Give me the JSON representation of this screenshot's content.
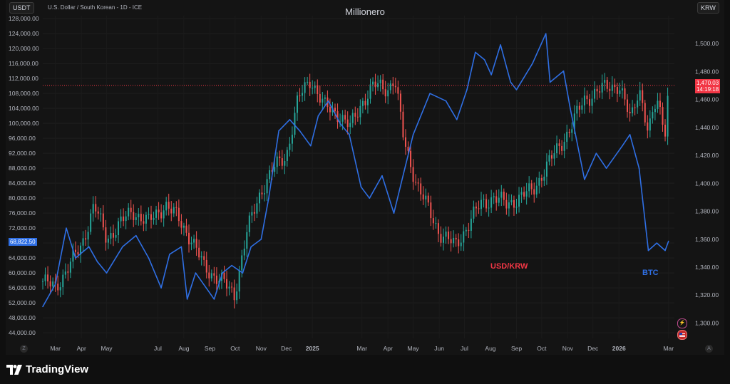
{
  "header": {
    "left_scale_label": "USDT",
    "symbol_info": "U.S. Dollar / South Korean - 1D - ICE",
    "title": "Millionero",
    "right_scale_label": "KRW"
  },
  "annotations": {
    "usdkrw": "USD/KRW",
    "btc": "BTC"
  },
  "price_tags": {
    "btc_price": "68,822.50",
    "krw_price": "1,470.03",
    "countdown": "14:19:18"
  },
  "footer": {
    "brand": "TradingView"
  },
  "icons": [
    "z-scale-icon",
    "lightning-icon",
    "us-flag-icon",
    "auto-scale-icon",
    "tradingview-logo-icon"
  ],
  "colors": {
    "btc_line": "#2f6fe4",
    "krw_up": "#26a69a",
    "krw_down": "#ef5350",
    "price_line": "#f23645",
    "background": "#141414",
    "annotation_usdkrw": "#f23645",
    "annotation_btc": "#2f6fe4"
  },
  "chart_data": {
    "type": "line",
    "title": "Millionero",
    "x_tick_labels": [
      "Mar",
      "Apr",
      "May",
      "Jul",
      "Aug",
      "Sep",
      "Oct",
      "Nov",
      "Dec",
      "2025",
      "Mar",
      "Apr",
      "May",
      "Jun",
      "Jul",
      "Aug",
      "Sep",
      "Oct",
      "Nov",
      "Dec",
      "2026",
      "Mar"
    ],
    "y_left_ticks": [
      "128,000.00",
      "124,000.00",
      "120,000.00",
      "116,000.00",
      "112,000.00",
      "108,000.00",
      "104,000.00",
      "100,000.00",
      "96,000.00",
      "92,000.00",
      "88,000.00",
      "84,000.00",
      "80,000.00",
      "76,000.00",
      "72,000.00",
      "68,000.00",
      "64,000.00",
      "60,000.00",
      "56,000.00",
      "52,000.00",
      "48,000.00",
      "44,000.00"
    ],
    "y_right_ticks": [
      "1,500.00",
      "1,480.00",
      "1,460.00",
      "1,440.00",
      "1,420.00",
      "1,400.00",
      "1,380.00",
      "1,360.00",
      "1,340.00",
      "1,320.00",
      "1,300.00"
    ],
    "ylim_left": [
      42500,
      128800
    ],
    "ylim_right": [
      1289,
      1520
    ],
    "series": [
      {
        "name": "BTC",
        "axis": "left",
        "x": [
          "2024-02-15",
          "2024-03-01",
          "2024-03-14",
          "2024-03-25",
          "2024-04-10",
          "2024-04-20",
          "2024-05-01",
          "2024-05-20",
          "2024-06-05",
          "2024-06-20",
          "2024-07-05",
          "2024-07-15",
          "2024-07-29",
          "2024-08-05",
          "2024-08-15",
          "2024-09-06",
          "2024-09-16",
          "2024-09-27",
          "2024-10-10",
          "2024-10-20",
          "2024-11-01",
          "2024-11-10",
          "2024-11-22",
          "2024-12-05",
          "2024-12-17",
          "2024-12-30",
          "2025-01-08",
          "2025-01-20",
          "2025-02-03",
          "2025-02-14",
          "2025-02-28",
          "2025-03-10",
          "2025-03-25",
          "2025-04-08",
          "2025-04-20",
          "2025-05-01",
          "2025-05-21",
          "2025-06-09",
          "2025-06-22",
          "2025-07-04",
          "2025-07-14",
          "2025-07-25",
          "2025-08-02",
          "2025-08-13",
          "2025-08-25",
          "2025-09-01",
          "2025-09-20",
          "2025-10-06",
          "2025-10-11",
          "2025-10-27",
          "2025-11-04",
          "2025-11-21",
          "2025-12-05",
          "2025-12-17",
          "2026-01-05",
          "2026-01-14",
          "2026-01-25",
          "2026-02-05",
          "2026-02-15",
          "2026-02-25",
          "2026-03-01"
        ],
        "values": [
          51000,
          57000,
          72000,
          64000,
          67000,
          63000,
          60000,
          67000,
          70000,
          64000,
          56000,
          65000,
          67000,
          53000,
          60000,
          53000,
          60000,
          62000,
          60000,
          67000,
          69000,
          80000,
          98000,
          101000,
          98000,
          94000,
          102000,
          106000,
          100000,
          97000,
          83000,
          80000,
          86000,
          76000,
          87000,
          97000,
          108000,
          106000,
          101000,
          109000,
          119000,
          117000,
          113000,
          121000,
          111000,
          109000,
          116000,
          124000,
          111000,
          114000,
          104000,
          85000,
          92000,
          88000,
          94000,
          97000,
          88000,
          66000,
          68000,
          66000,
          68500
        ]
      },
      {
        "name": "USD/KRW",
        "axis": "right",
        "x": [
          "2024-02-15",
          "2024-03-01",
          "2024-03-14",
          "2024-04-01",
          "2024-04-16",
          "2024-05-01",
          "2024-05-15",
          "2024-06-01",
          "2024-06-20",
          "2024-07-10",
          "2024-07-25",
          "2024-08-10",
          "2024-08-25",
          "2024-09-15",
          "2024-09-30",
          "2024-10-15",
          "2024-11-01",
          "2024-11-15",
          "2024-12-01",
          "2024-12-15",
          "2024-12-30",
          "2025-01-15",
          "2025-02-01",
          "2025-02-15",
          "2025-03-01",
          "2025-03-15",
          "2025-04-01",
          "2025-04-09",
          "2025-04-20",
          "2025-05-05",
          "2025-05-20",
          "2025-06-01",
          "2025-06-20",
          "2025-07-05",
          "2025-07-20",
          "2025-08-05",
          "2025-08-20",
          "2025-09-05",
          "2025-09-20",
          "2025-10-05",
          "2025-10-20",
          "2025-11-05",
          "2025-11-20",
          "2025-12-05",
          "2025-12-20",
          "2026-01-01",
          "2026-01-15",
          "2026-01-25",
          "2026-02-05",
          "2026-02-15",
          "2026-02-25",
          "2026-03-01"
        ],
        "values": [
          1330,
          1325,
          1338,
          1355,
          1385,
          1360,
          1370,
          1380,
          1372,
          1385,
          1375,
          1360,
          1340,
          1330,
          1320,
          1365,
          1395,
          1410,
          1420,
          1460,
          1475,
          1455,
          1450,
          1440,
          1458,
          1470,
          1468,
          1475,
          1430,
          1400,
          1380,
          1365,
          1355,
          1370,
          1385,
          1390,
          1385,
          1390,
          1395,
          1410,
          1425,
          1440,
          1460,
          1465,
          1470,
          1470,
          1445,
          1470,
          1435,
          1460,
          1440,
          1470
        ]
      }
    ]
  }
}
